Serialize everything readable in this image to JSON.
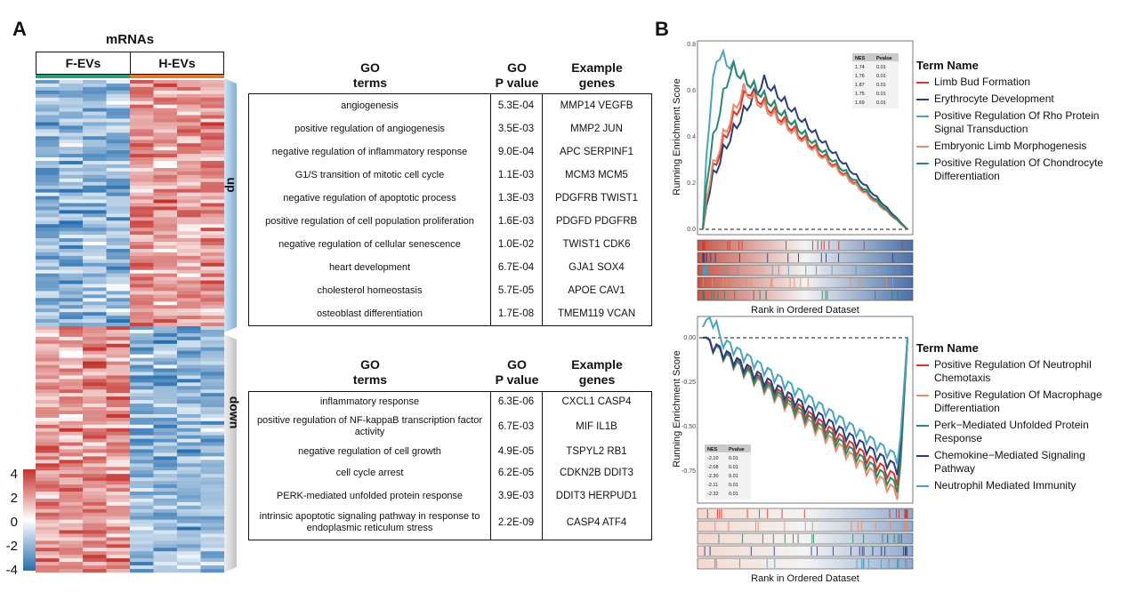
{
  "panel_a": {
    "letter": "A",
    "heatmap": {
      "title": "mRNAs",
      "group_labels": [
        "F-EVs",
        "H-EVs"
      ],
      "group_colors": [
        "#2e9b7a",
        "#e07b2d"
      ],
      "colorbar_ticks": [
        "4",
        "2",
        "0",
        "-2",
        "-4"
      ],
      "side_labels": [
        "up",
        "down"
      ]
    },
    "up_table": {
      "headers": {
        "terms": "GO\nterms",
        "pvalue": "GO\nP value",
        "genes": "Example\ngenes"
      },
      "rows": [
        {
          "term": "angiogenesis",
          "p": "5.3E-04",
          "genes": "MMP14 VEGFB"
        },
        {
          "term": "positive regulation of angiogenesis",
          "p": "3.5E-03",
          "genes": "MMP2 JUN"
        },
        {
          "term": "negative regulation of inflammatory response",
          "p": "9.0E-04",
          "genes": "APC SERPINF1"
        },
        {
          "term": "G1/S transition of mitotic cell cycle",
          "p": "1.1E-03",
          "genes": "MCM3 MCM5"
        },
        {
          "term": "negative regulation of apoptotic process",
          "p": "1.3E-03",
          "genes": "PDGFRB TWIST1"
        },
        {
          "term": "positive regulation of cell population proliferation",
          "p": "1.6E-03",
          "genes": "PDGFD PDGFRB"
        },
        {
          "term": "negative regulation of cellular senescence",
          "p": "1.0E-02",
          "genes": "TWIST1 CDK6"
        },
        {
          "term": "heart development",
          "p": "6.7E-04",
          "genes": "GJA1 SOX4"
        },
        {
          "term": "cholesterol homeostasis",
          "p": "5.7E-05",
          "genes": "APOE CAV1"
        },
        {
          "term": "osteoblast differentiation",
          "p": "1.7E-08",
          "genes": "TMEM119 VCAN"
        }
      ]
    },
    "down_table": {
      "headers": {
        "terms": "GO\nterms",
        "pvalue": "GO\nP value",
        "genes": "Example\ngenes"
      },
      "rows": [
        {
          "term": "inflammatory response",
          "p": "6.3E-06",
          "genes": "CXCL1 CASP4"
        },
        {
          "term": "positive regulation of NF-kappaB transcription factor activity",
          "p": "6.7E-03",
          "genes": "MIF IL1B"
        },
        {
          "term": "negative regulation of cell growth",
          "p": "4.9E-05",
          "genes": "TSPYL2 RB1"
        },
        {
          "term": "cell cycle arrest",
          "p": "6.2E-05",
          "genes": "CDKN2B DDIT3"
        },
        {
          "term": "PERK-mediated unfolded protein response",
          "p": "3.9E-03",
          "genes": "DDIT3 HERPUD1"
        },
        {
          "term": "intrinsic apoptotic signaling pathway in response to endoplasmic reticulum stress",
          "p": "2.2E-09",
          "genes": "CASP4 ATF4"
        }
      ]
    }
  },
  "panel_b": {
    "letter": "B",
    "chart_data": [
      {
        "type": "line",
        "ylabel": "Running Enrichment Score",
        "xlabel": "Rank in Ordered Dataset",
        "yticks": [
          "0.8",
          "0.6",
          "0.4",
          "0.2",
          "0.0"
        ],
        "ylim": [
          0,
          0.8
        ],
        "legend_title": "Term Name",
        "nes_table": {
          "headers": [
            "NES",
            "Pvalue"
          ],
          "rows": [
            [
              "1.74",
              "0.01"
            ],
            [
              "1.76",
              "0.01"
            ],
            [
              "1.87",
              "0.01"
            ],
            [
              "1.75",
              "0.01"
            ],
            [
              "1.69",
              "0.01"
            ]
          ]
        },
        "series": [
          {
            "name": "Limb Bud Formation",
            "color": "#d7352b",
            "peak": 0.6,
            "peak_at": 0.22
          },
          {
            "name": "Erythrocyte Development",
            "color": "#2c3e7a",
            "peak": 0.64,
            "peak_at": 0.3
          },
          {
            "name": "Positive Regulation Of Rho Protein Signal Transduction",
            "color": "#4aa3bf",
            "peak": 0.76,
            "peak_at": 0.07
          },
          {
            "name": "Embryonic Limb Morphogenesis",
            "color": "#ea8a67",
            "peak": 0.6,
            "peak_at": 0.2
          },
          {
            "name": "Positive Regulation Of Chondrocyte Differentiation",
            "color": "#2a8a6b",
            "peak": 0.7,
            "peak_at": 0.14
          }
        ]
      },
      {
        "type": "line",
        "ylabel": "Running Enrichment Score",
        "xlabel": "Rank in Ordered Dataset",
        "yticks": [
          "0.00",
          "-0.25",
          "-0.50",
          "-0.75"
        ],
        "ylim": [
          -0.9,
          0.1
        ],
        "legend_title": "Term Name",
        "nes_table": {
          "headers": [
            "NES",
            "Pvalue"
          ],
          "rows": [
            [
              "-2.10",
              "0.01"
            ],
            [
              "-2.08",
              "0.01"
            ],
            [
              "-2.30",
              "0.01"
            ],
            [
              "-2.11",
              "0.01"
            ],
            [
              "-2.32",
              "0.01"
            ]
          ]
        },
        "series": [
          {
            "name": "Positive Regulation Of Neutrophil Chemotaxis",
            "color": "#d7352b",
            "min": -0.8
          },
          {
            "name": "Positive Regulation Of Macrophage Differentiation",
            "color": "#ea8a67",
            "min": -0.88
          },
          {
            "name": "Perk−Mediated Unfolded Protein Response",
            "color": "#2a8a6b",
            "min": -0.84
          },
          {
            "name": "Chemokine−Mediated Signaling Pathway",
            "color": "#2c3e7a",
            "min": -0.74
          },
          {
            "name": "Neutrophil Mediated Immunity",
            "color": "#4aa3bf",
            "min": -0.68
          }
        ]
      }
    ]
  }
}
